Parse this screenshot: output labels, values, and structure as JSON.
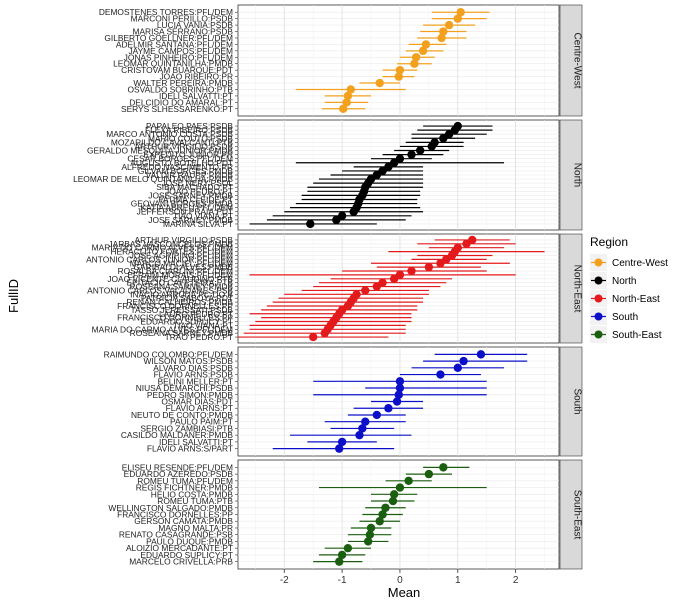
{
  "chart_data": {
    "type": "scatter",
    "xlabel": "Mean",
    "ylabel": "FullID",
    "xlim": [
      -2.8,
      2.75
    ],
    "x_ticks": [
      -2,
      -1,
      0,
      1,
      2
    ],
    "grid": true,
    "legend": {
      "title": "Region",
      "placement": "right",
      "entries": [
        {
          "name": "Centre-West",
          "color": "#f2a01e"
        },
        {
          "name": "North",
          "color": "#000000"
        },
        {
          "name": "North-East",
          "color": "#e31a1c"
        },
        {
          "name": "South",
          "color": "#0b10c8"
        },
        {
          "name": "South-East",
          "color": "#1b5e10"
        }
      ]
    },
    "panels": [
      {
        "region": "Centre-West",
        "color": "#f2a01e",
        "points": [
          {
            "label": "DEMOSTENES TORRES:PFL/DEM",
            "mean": 1.05,
            "lo": 0.55,
            "hi": 1.55
          },
          {
            "label": "MARCONI PERILLO:PSDB",
            "mean": 1.0,
            "lo": 0.55,
            "hi": 1.5
          },
          {
            "label": "LUCIA VANIA:PSDB",
            "mean": 0.85,
            "lo": 0.4,
            "hi": 1.3
          },
          {
            "label": "MARISA SERRANO:PSDB",
            "mean": 0.75,
            "lo": 0.35,
            "hi": 1.15
          },
          {
            "label": "GILBERTO GOELLNER:PFL/DEM",
            "mean": 0.72,
            "lo": 0.3,
            "hi": 1.15
          },
          {
            "label": "ADELMIR SANTANA:PFL/DEM",
            "mean": 0.45,
            "lo": 0.15,
            "hi": 0.8
          },
          {
            "label": "JAYME CAMPOS:PFL/DEM",
            "mean": 0.4,
            "lo": 0.1,
            "hi": 0.75
          },
          {
            "label": "JONAS PINHEIRO:PFL/DEM",
            "mean": 0.28,
            "lo": 0.0,
            "hi": 0.6
          },
          {
            "label": "LEOMAR QUINTANILHA:PMDB",
            "mean": 0.25,
            "lo": -0.05,
            "hi": 0.55
          },
          {
            "label": "CRISTOVAM BUARQUE:PDT",
            "mean": 0.0,
            "lo": -0.3,
            "hi": 0.3
          },
          {
            "label": "JOAO RIBEIRO:PR",
            "mean": -0.02,
            "lo": -0.3,
            "hi": 0.25
          },
          {
            "label": "WALTER PEREIRA:PMDB",
            "mean": -0.35,
            "lo": -0.7,
            "hi": 0.0
          },
          {
            "label": "OSVALDO SOBRINHO:PTB",
            "mean": -0.85,
            "lo": -1.8,
            "hi": 0.1
          },
          {
            "label": "IDELI SALVATTI:PT",
            "mean": -0.9,
            "lo": -1.3,
            "hi": -0.5
          },
          {
            "label": "DELCIDIO DO AMARAL:PT",
            "mean": -0.92,
            "lo": -1.3,
            "hi": -0.55
          },
          {
            "label": "SERYS SLHESSARENKO:PT",
            "mean": -0.98,
            "lo": -1.35,
            "hi": -0.6
          }
        ]
      },
      {
        "region": "North",
        "color": "#000000",
        "points": [
          {
            "label": "PAPALEO PAES:PSDB",
            "mean": 1.0,
            "lo": 0.4,
            "hi": 1.6
          },
          {
            "label": "FLEXA RIBEIRO:PSDB",
            "mean": 0.95,
            "lo": 0.3,
            "hi": 1.6
          },
          {
            "label": "MARCO ANTONIO COSTA:PSDB",
            "mean": 0.85,
            "lo": 0.2,
            "hi": 1.5
          },
          {
            "label": "MARIO COUTO:PSDB",
            "mean": 0.75,
            "lo": 0.2,
            "hi": 1.3
          },
          {
            "label": "MOZARILDO CAVALCANTI:PTB",
            "mean": 0.6,
            "lo": 0.1,
            "hi": 1.1
          },
          {
            "label": "ARTHUR VIRGILIO:PSDB",
            "mean": 0.55,
            "lo": 0.0,
            "hi": 1.1
          },
          {
            "label": "GERALDO MESQUITA JUNIOR:PMDB",
            "mean": 0.35,
            "lo": -0.1,
            "hi": 0.85
          },
          {
            "label": "EXPEDITO JUNIOR:PR",
            "mean": 0.2,
            "lo": -0.3,
            "hi": 0.75
          },
          {
            "label": "CESAR BORGES:PFL/DEM",
            "mean": 0.0,
            "lo": -0.5,
            "hi": 0.55
          },
          {
            "label": "AUGUSTO BOTELHO:PDT",
            "mean": -0.1,
            "lo": -1.8,
            "hi": 1.8
          },
          {
            "label": "ALFREDO NASCIMENTO:PR",
            "mean": -0.2,
            "lo": -0.8,
            "hi": 0.4
          },
          {
            "label": "GILVAM BORGES:PMDB",
            "mean": -0.3,
            "lo": -1.0,
            "hi": 0.4
          },
          {
            "label": "VALDIR RAUPP:PMDB",
            "mean": -0.4,
            "lo": -1.2,
            "hi": 0.4
          },
          {
            "label": "LEOMAR DE MELO QUINTANILHA:PMDB",
            "mean": -0.5,
            "lo": -1.4,
            "hi": 0.4
          },
          {
            "label": "JOSE NERY:PSOL",
            "mean": -0.55,
            "lo": -1.5,
            "hi": 0.4
          },
          {
            "label": "SIBA MACHADO:PT",
            "mean": -0.6,
            "lo": -1.6,
            "hi": 0.4
          },
          {
            "label": "JOAO PEDRO:PT",
            "mean": -0.62,
            "lo": -1.6,
            "hi": 0.35
          },
          {
            "label": "JOSE SARNEY:PMDB",
            "mean": -0.65,
            "lo": -1.7,
            "hi": 0.35
          },
          {
            "label": "FATIMA CLEIDE:PT",
            "mean": -0.7,
            "lo": -1.7,
            "hi": 0.3
          },
          {
            "label": "GEOVANI BORGES:PMDB",
            "mean": -0.72,
            "lo": -1.8,
            "hi": 0.3
          },
          {
            "label": "KATIA ABREU:PFL/DEM",
            "mean": -0.75,
            "lo": -1.9,
            "hi": 0.35
          },
          {
            "label": "JEFFERSON PRAIA:PDT",
            "mean": -0.8,
            "lo": -2.0,
            "hi": 0.4
          },
          {
            "label": "TIAO VIANA:PT",
            "mean": -1.0,
            "lo": -2.2,
            "hi": 0.2
          },
          {
            "label": "JOSE SARNEY:PMDB",
            "mean": -1.1,
            "lo": -2.3,
            "hi": 0.1
          },
          {
            "label": "MARINA SILVA:PT",
            "mean": -1.55,
            "lo": -2.6,
            "hi": -0.4
          }
        ]
      },
      {
        "region": "North-East",
        "color": "#e31a1c",
        "points": [
          {
            "label": "ARTHUR VIRGILIO:PSDB",
            "mean": 1.25,
            "lo": 0.6,
            "hi": 1.9
          },
          {
            "label": "JARBAS VASCONCELOS:PMDB",
            "mean": 1.15,
            "lo": 0.3,
            "hi": 2.0
          },
          {
            "label": "MARIA DO CARMO ALVES:PFL/DEM",
            "mean": 1.0,
            "lo": 0.5,
            "hi": 1.8
          },
          {
            "label": "HERACLITO FORTES:PFL/DEM",
            "mean": 0.95,
            "lo": -0.2,
            "hi": 2.5
          },
          {
            "label": "JOSE AGRIPINO:PFL/DEM",
            "mean": 0.9,
            "lo": 0.3,
            "hi": 1.6
          },
          {
            "label": "ANTONIO CARLOS JUNIOR:PFL/DEM",
            "mean": 0.8,
            "lo": 0.2,
            "hi": 1.5
          },
          {
            "label": "MARCO MACIEL:PFL/DEM",
            "mean": 0.7,
            "lo": -0.5,
            "hi": 1.9
          },
          {
            "label": "GARIBALDI ALVES:PMDB",
            "mean": 0.5,
            "lo": -0.4,
            "hi": 1.4
          },
          {
            "label": "ROSALBA CIARLINI:PFL/DEM",
            "mean": 0.2,
            "lo": -1.0,
            "hi": 1.5
          },
          {
            "label": "EFRAIM MORAIS:PFL/DEM",
            "mean": 0.0,
            "lo": -2.6,
            "hi": 2.0
          },
          {
            "label": "JOAO VICENTE CLAUDINO:PTB",
            "mean": -0.1,
            "lo": -1.2,
            "hi": 0.9
          },
          {
            "label": "EPITACIO CAFETEIRA:PTB",
            "mean": -0.3,
            "lo": -1.4,
            "hi": 0.8
          },
          {
            "label": "ROSEANA SARNEY:PMDB",
            "mean": -0.4,
            "lo": -1.5,
            "hi": 0.7
          },
          {
            "label": "ANTONIO CARLOS VALADARES:PSB",
            "mean": -0.6,
            "lo": -1.7,
            "hi": 0.5
          },
          {
            "label": "INACIO ARRUDA:PC DO B",
            "mean": -0.75,
            "lo": -2.0,
            "hi": 0.5
          },
          {
            "label": "PATRICIA SABOYA:PDT",
            "mean": -0.8,
            "lo": -2.1,
            "hi": 0.4
          },
          {
            "label": "RENAN CALHEIROS:PMDB",
            "mean": -0.85,
            "lo": -2.2,
            "hi": 0.4
          },
          {
            "label": "FRANCISCO DORNELLES:PP",
            "mean": -0.9,
            "lo": -2.3,
            "hi": 0.3
          },
          {
            "label": "TASSO JEREISSATI:PSDB",
            "mean": -1.0,
            "lo": -2.4,
            "hi": 0.3
          },
          {
            "label": "LAURO PEDRO:PT",
            "mean": -1.05,
            "lo": -2.6,
            "hi": 0.2
          },
          {
            "label": "FRANCISCO DORNELLES:PP",
            "mean": -1.1,
            "lo": -2.4,
            "hi": 0.2
          },
          {
            "label": "EDUARDO SUPLICY:PT",
            "mean": -1.15,
            "lo": -2.5,
            "hi": 0.2
          },
          {
            "label": "TIAO VIANA:PT",
            "mean": -1.2,
            "lo": -2.6,
            "hi": 0.1
          },
          {
            "label": "MARIA DO CARMO ALVES:PFL/DEM",
            "mean": -1.25,
            "lo": -2.6,
            "hi": 0.1
          },
          {
            "label": "ROSEANA SARNEY:PMDB",
            "mean": -1.3,
            "lo": -2.7,
            "hi": 0.1
          },
          {
            "label": "TRAO PEDRO:PT",
            "mean": -1.5,
            "lo": -2.8,
            "hi": -0.2
          }
        ]
      },
      {
        "region": "South",
        "color": "#0b10c8",
        "points": [
          {
            "label": "RAIMUNDO COLOMBO:PFL/DEM",
            "mean": 1.4,
            "lo": 0.6,
            "hi": 2.2
          },
          {
            "label": "WILSON MATOS:PSDB",
            "mean": 1.1,
            "lo": 0.4,
            "hi": 2.2
          },
          {
            "label": "ALVARO DIAS:PSDB",
            "mean": 1.0,
            "lo": 0.2,
            "hi": 1.8
          },
          {
            "label": "FLAVIO ARNS:PSDB",
            "mean": 0.7,
            "lo": 0.0,
            "hi": 1.4
          },
          {
            "label": "BELINI MELLER:PT",
            "mean": 0.0,
            "lo": -1.5,
            "hi": 1.5
          },
          {
            "label": "NIUSA DEMARCHI:PSDB",
            "mean": 0.0,
            "lo": -0.6,
            "hi": 1.5
          },
          {
            "label": "PEDRO SIMON:PMDB",
            "mean": -0.02,
            "lo": -1.5,
            "hi": 1.5
          },
          {
            "label": "OSMAR DIAS:PDT",
            "mean": -0.05,
            "lo": -0.5,
            "hi": 0.4
          },
          {
            "label": "FLAVIO ARNS:PT",
            "mean": -0.2,
            "lo": -0.8,
            "hi": 0.4
          },
          {
            "label": "NEUTO DE CONTO:PMDB",
            "mean": -0.4,
            "lo": -0.9,
            "hi": 0.1
          },
          {
            "label": "PAULO PAIM:PT",
            "mean": -0.6,
            "lo": -1.3,
            "hi": 0.1
          },
          {
            "label": "SERGIO ZAMBIASI:PTB",
            "mean": -0.65,
            "lo": -1.2,
            "hi": -0.1
          },
          {
            "label": "CASILDO MALDANER:PMDB",
            "mean": -0.7,
            "lo": -1.9,
            "hi": 0.2
          },
          {
            "label": "IDELI SALVATTI:PT",
            "mean": -1.0,
            "lo": -1.6,
            "hi": -0.4
          },
          {
            "label": "FLAVIO ARNS:S/PART",
            "mean": -1.05,
            "lo": -2.2,
            "hi": -0.1
          }
        ]
      },
      {
        "region": "South-East",
        "color": "#1b5e10",
        "points": [
          {
            "label": "ELISEU RESENDE:PFL/DEM",
            "mean": 0.75,
            "lo": 0.4,
            "hi": 1.2
          },
          {
            "label": "EDUARDO AZEREDO:PSDB",
            "mean": 0.5,
            "lo": 0.1,
            "hi": 0.9
          },
          {
            "label": "ROMEU TUMA:PFL/DEM",
            "mean": 0.15,
            "lo": -0.25,
            "hi": 0.55
          },
          {
            "label": "REGIS FICHTNER:PMDB",
            "mean": 0.0,
            "lo": -1.4,
            "hi": 1.5
          },
          {
            "label": "HELIO COSTA:PMDB",
            "mean": -0.1,
            "lo": -0.5,
            "hi": 0.3
          },
          {
            "label": "ROMEU TUMA:PTB",
            "mean": -0.12,
            "lo": -0.5,
            "hi": 0.25
          },
          {
            "label": "WELLINGTON SALGADO:PMDB",
            "mean": -0.25,
            "lo": -0.6,
            "hi": 0.1
          },
          {
            "label": "FRANCISCO DORNELLES:PP",
            "mean": -0.3,
            "lo": -0.65,
            "hi": 0.05
          },
          {
            "label": "GERSON CAMATA:PMDB",
            "mean": -0.35,
            "lo": -0.7,
            "hi": 0.0
          },
          {
            "label": "MAGNO MALTA:PR",
            "mean": -0.5,
            "lo": -0.85,
            "hi": -0.15
          },
          {
            "label": "RENATO CASAGRANDE:PSB",
            "mean": -0.52,
            "lo": -0.9,
            "hi": -0.15
          },
          {
            "label": "PAULO DUQUE:PMDB",
            "mean": -0.55,
            "lo": -0.9,
            "hi": -0.2
          },
          {
            "label": "ALOIZIO MERCADANTE:PT",
            "mean": -0.9,
            "lo": -1.3,
            "hi": -0.5
          },
          {
            "label": "EDUARDO SUPLICY:PT",
            "mean": -1.0,
            "lo": -1.4,
            "hi": -0.6
          },
          {
            "label": "MARCELO CRIVELLA:PRB",
            "mean": -1.05,
            "lo": -1.5,
            "hi": -0.65
          }
        ]
      }
    ]
  }
}
